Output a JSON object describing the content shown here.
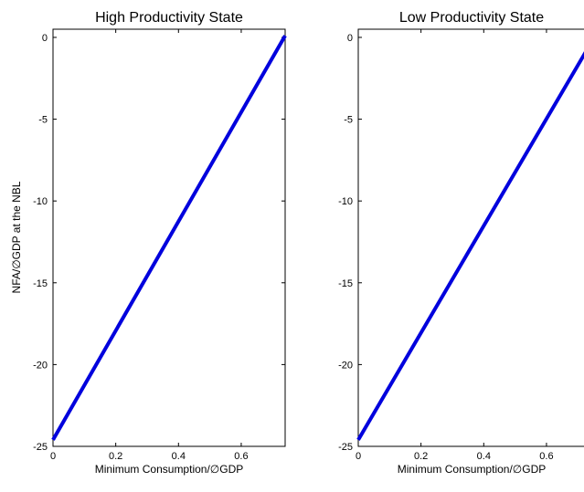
{
  "chart_data": [
    {
      "type": "line",
      "title": "High Productivity State",
      "xlabel": "Minimum Consumption/∅GDP",
      "ylabel": "NFA/∅GDP at the NBL",
      "xlim": [
        0,
        0.74
      ],
      "ylim": [
        -25,
        0.5
      ],
      "xticks": [
        0,
        0.2,
        0.4,
        0.6
      ],
      "xtick_labels": [
        "0",
        "0.2",
        "0.4",
        "0.6"
      ],
      "yticks": [
        0,
        -5,
        -10,
        -15,
        -20,
        -25
      ],
      "ytick_labels": [
        "0",
        "-5",
        "-10",
        "-15",
        "-20",
        "-25"
      ],
      "grid": false,
      "series": [
        {
          "color": "#0000dd",
          "x": [
            0,
            0.74
          ],
          "y": [
            -24.6,
            0.1
          ]
        }
      ]
    },
    {
      "type": "line",
      "title": "Low Productivity State",
      "xlabel": "Minimum Consumption/∅GDP",
      "ylabel": "",
      "xlim": [
        0,
        0.74
      ],
      "ylim": [
        -25,
        0.5
      ],
      "xticks": [
        0,
        0.2,
        0.4,
        0.6
      ],
      "xtick_labels": [
        "0",
        "0.2",
        "0.4",
        "0.6"
      ],
      "yticks": [
        0,
        -5,
        -10,
        -15,
        -20,
        -25
      ],
      "ytick_labels": [
        "0",
        "-5",
        "-10",
        "-15",
        "-20",
        "-25"
      ],
      "grid": false,
      "series": [
        {
          "color": "#0000dd",
          "x": [
            0,
            0.74
          ],
          "y": [
            -24.6,
            -0.4
          ]
        }
      ]
    }
  ]
}
